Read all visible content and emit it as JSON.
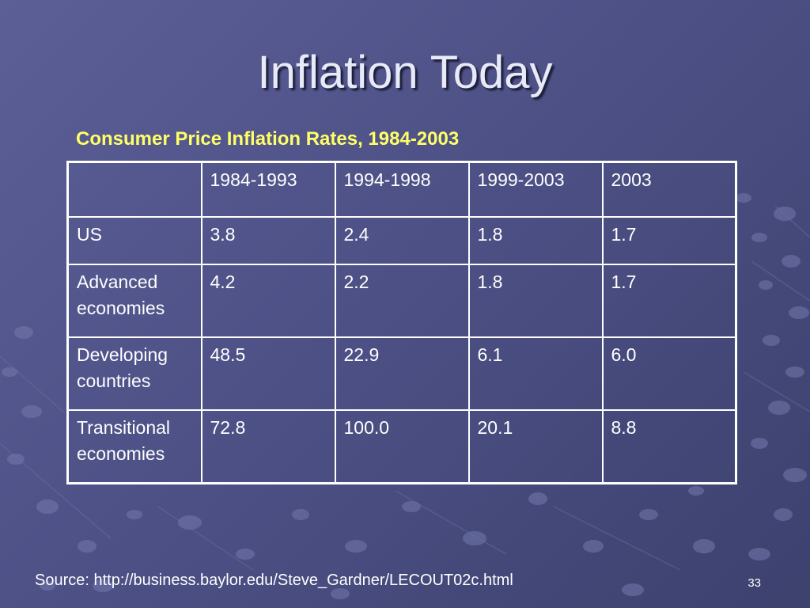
{
  "slide": {
    "title": "Inflation Today",
    "caption": "Consumer Price Inflation Rates, 1984-2003",
    "source": "Source: http://business.baylor.edu/Steve_Gardner/LECOUT02c.html",
    "page_number": "33",
    "colors": {
      "background": "#4d5186",
      "title": "#e9eaf8",
      "caption": "#ffff66",
      "table_text": "#ffffff",
      "table_border": "#ffffff"
    }
  },
  "table": {
    "header": [
      "",
      "1984-1993",
      "1994-1998",
      "1999-2003",
      "2003"
    ],
    "rows": [
      [
        "US",
        "3.8",
        "2.4",
        "1.8",
        "1.7"
      ],
      [
        "Advanced economies",
        "4.2",
        "2.2",
        "1.8",
        "1.7"
      ],
      [
        "Developing countries",
        "48.5",
        "22.9",
        "6.1",
        "6.0"
      ],
      [
        "Transitional economies",
        "72.8",
        "100.0",
        "20.1",
        "8.8"
      ]
    ]
  }
}
